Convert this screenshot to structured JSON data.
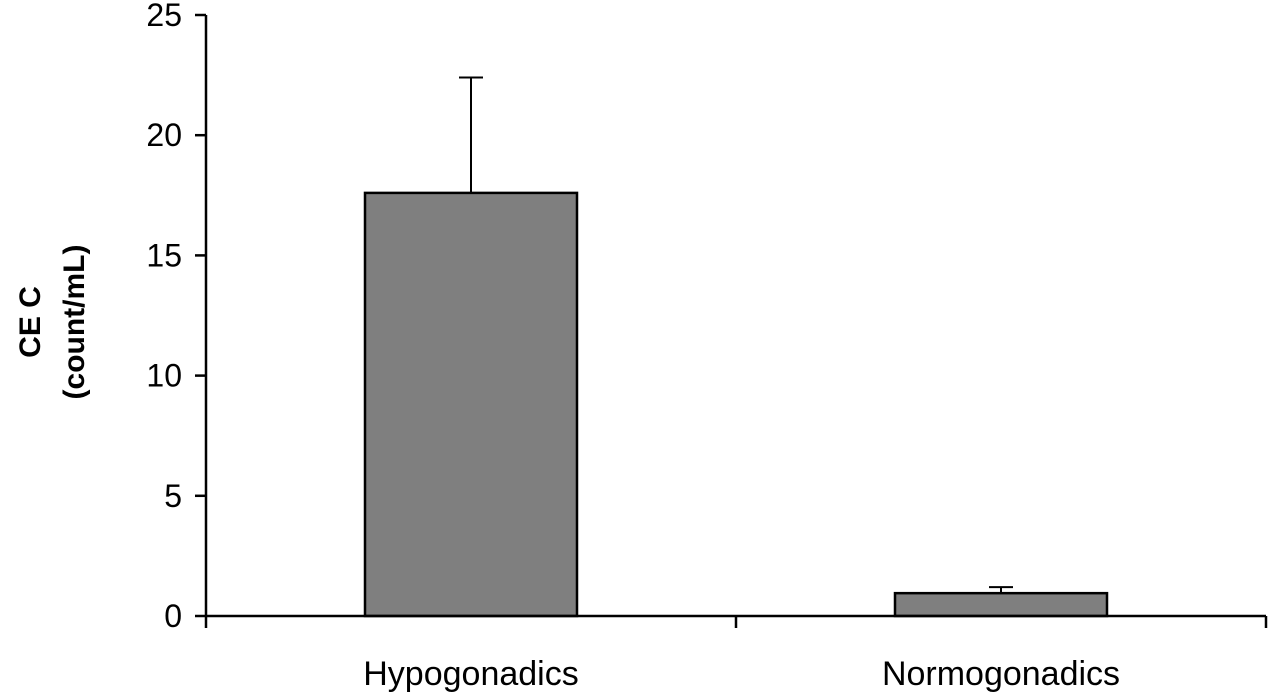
{
  "chart_data": {
    "type": "bar",
    "title": "",
    "xlabel": "",
    "ylabel_lines": [
      "CE C",
      "(count/mL)"
    ],
    "categories": [
      "Hypogonadics",
      "Normogonadics"
    ],
    "values": [
      17.6,
      0.95
    ],
    "error_upper": [
      22.4,
      1.2
    ],
    "ylim": [
      0,
      25
    ],
    "yticks": [
      0,
      5,
      10,
      15,
      20,
      25
    ],
    "grid": false,
    "legend": "none",
    "colors": {
      "bar_fill": "#7f7f7f",
      "bar_stroke": "#000000",
      "axis": "#000000"
    }
  }
}
